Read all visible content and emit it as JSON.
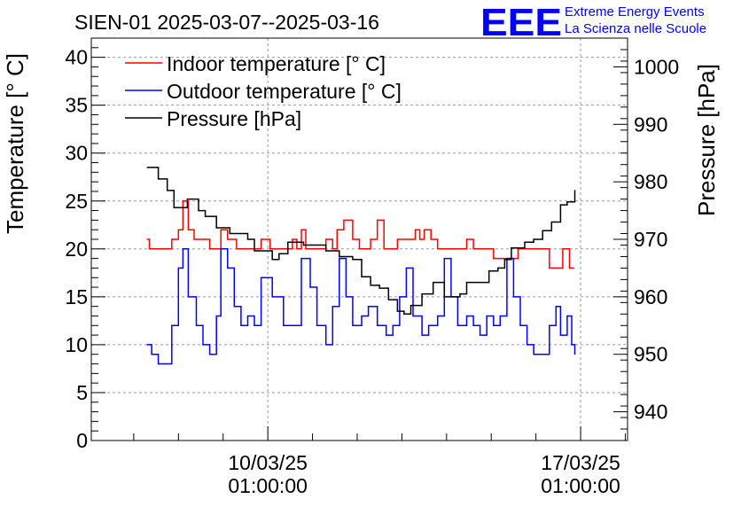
{
  "logo": {
    "letters": "EEE",
    "line1": "Extreme Energy Events",
    "line2": "La Scienza nelle Scuole",
    "color": "#0000ff"
  },
  "chart_data": {
    "type": "line",
    "title": "SIEN-01 2025-03-07--2025-03-16",
    "xlabel": "",
    "ylabel": "Temperature [° C]",
    "y2label": "Pressure [hPa]",
    "grid": true,
    "legend_position": "top-left",
    "xlim_days": [
      -3.95,
      8.05
    ],
    "ylim": [
      0,
      42
    ],
    "y2lim": [
      935,
      1005
    ],
    "yticks": [
      0,
      5,
      10,
      15,
      20,
      25,
      30,
      35,
      40
    ],
    "y2ticks": [
      940,
      950,
      960,
      970,
      980,
      990,
      1000
    ],
    "xticks": [
      {
        "day": 0,
        "date": "10/03/25",
        "time": "01:00:00"
      },
      {
        "day": 7,
        "date": "17/03/25",
        "time": "01:00:00"
      }
    ],
    "x_unit": "days since 2025-03-10 01:00:00",
    "series": [
      {
        "name": "Indoor temperature [° C]",
        "color": "#ff0000",
        "axis": "left",
        "x": [
          -2.7,
          -2.65,
          -2.3,
          -2.15,
          -2.0,
          -1.9,
          -1.78,
          -1.65,
          -1.45,
          -1.3,
          -1.05,
          -0.9,
          -0.7,
          -0.3,
          -0.15,
          0.05,
          0.2,
          0.4,
          0.55,
          0.65,
          0.75,
          0.85,
          1.0,
          1.3,
          1.45,
          1.55,
          1.7,
          1.9,
          2.05,
          2.15,
          2.3,
          2.45,
          2.6,
          2.75,
          2.9,
          3.05,
          3.2,
          3.3,
          3.4,
          3.5,
          3.65,
          3.8,
          4.0,
          4.3,
          4.45,
          4.6,
          4.9,
          5.05,
          5.2,
          5.4,
          5.6,
          6.0,
          6.3,
          6.5,
          6.6,
          6.75,
          6.85
        ],
        "values": [
          21,
          20,
          20,
          21,
          22,
          25,
          22,
          21,
          21,
          20,
          22,
          21,
          20,
          20,
          21,
          20,
          20,
          20,
          21,
          20,
          22,
          20,
          20,
          21,
          20,
          22,
          23,
          21,
          20,
          20,
          21,
          23,
          20,
          20,
          21,
          21,
          21,
          22,
          21,
          22,
          21,
          20,
          20,
          20,
          21,
          20,
          20,
          19,
          19,
          19,
          20,
          20,
          18,
          18,
          20,
          18,
          18
        ]
      },
      {
        "name": "Outdoor temperature [° C]",
        "color": "#0000ff",
        "axis": "left",
        "x": [
          -2.7,
          -2.6,
          -2.45,
          -2.3,
          -2.15,
          -2.0,
          -1.9,
          -1.78,
          -1.6,
          -1.45,
          -1.3,
          -1.15,
          -1.05,
          -0.9,
          -0.75,
          -0.6,
          -0.45,
          -0.3,
          -0.15,
          0.1,
          0.35,
          0.55,
          0.75,
          0.95,
          1.1,
          1.3,
          1.45,
          1.6,
          1.75,
          1.9,
          2.1,
          2.25,
          2.45,
          2.65,
          2.8,
          2.95,
          3.1,
          3.25,
          3.45,
          3.6,
          3.8,
          3.95,
          4.1,
          4.25,
          4.45,
          4.6,
          4.75,
          4.9,
          5.05,
          5.2,
          5.35,
          5.5,
          5.65,
          5.8,
          5.95,
          6.1,
          6.3,
          6.45,
          6.55,
          6.7,
          6.8,
          6.87
        ],
        "values": [
          10,
          9,
          8,
          8,
          12,
          18,
          20,
          15,
          12,
          10,
          9,
          13,
          20,
          18,
          14,
          12,
          13,
          12,
          17,
          15,
          12,
          12,
          19,
          16,
          12,
          10,
          14,
          19,
          15,
          12,
          13,
          14,
          12,
          11,
          12,
          15,
          18,
          13,
          11,
          12,
          13,
          19,
          15,
          12,
          13,
          12,
          11,
          13,
          12,
          13,
          19,
          15,
          12,
          10,
          9,
          9,
          12,
          14,
          11,
          13,
          10,
          9
        ]
      },
      {
        "name": "Pressure [hPa]",
        "color": "#000000",
        "axis": "right",
        "x": [
          -2.7,
          -2.45,
          -2.25,
          -2.1,
          -1.95,
          -1.8,
          -1.55,
          -1.4,
          -1.15,
          -1.0,
          -0.85,
          -0.6,
          -0.45,
          -0.3,
          -0.1,
          0.1,
          0.25,
          0.45,
          0.6,
          0.8,
          1.05,
          1.3,
          1.6,
          1.9,
          2.1,
          2.3,
          2.5,
          2.7,
          2.9,
          3.05,
          3.2,
          3.45,
          3.7,
          3.95,
          4.15,
          4.3,
          4.45,
          4.7,
          4.95,
          5.15,
          5.3,
          5.45,
          5.6,
          5.75,
          5.95,
          6.15,
          6.35,
          6.55,
          6.7,
          6.87
        ],
        "values": [
          982.5,
          980.5,
          978.5,
          975.5,
          975.5,
          977,
          975,
          974,
          972,
          972,
          971,
          971,
          970,
          968,
          968,
          966.5,
          967.5,
          969.5,
          969.5,
          969,
          969,
          968,
          967,
          966.5,
          963.5,
          962,
          961.5,
          959.5,
          957.5,
          957,
          958.5,
          960.5,
          962.5,
          960,
          960,
          960.5,
          962.5,
          962.5,
          964.5,
          965,
          966.5,
          968.5,
          968.5,
          969.5,
          970,
          971.5,
          973,
          976,
          976.5,
          978.5
        ]
      }
    ]
  }
}
